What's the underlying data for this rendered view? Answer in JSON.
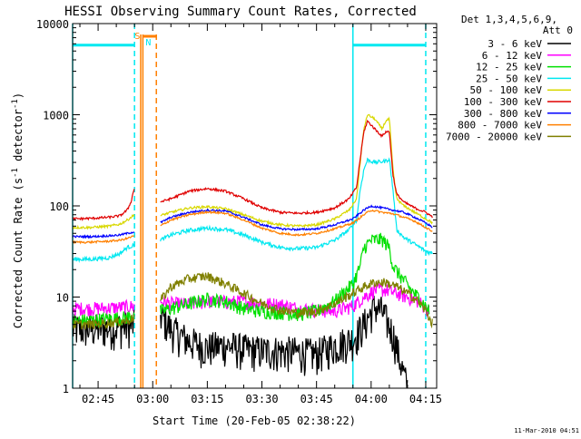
{
  "chart_data": {
    "type": "line",
    "title": "HESSI Observing Summary Count Rates, Corrected",
    "xlabel": "Start Time (20-Feb-05 02:38:22)",
    "ylabel": "Corrected Count Rate (s",
    "ylabel_sup1": "-1",
    "ylabel_mid": " detector",
    "ylabel_sup2": "-1",
    "ylabel_end": ")",
    "y_scale": "log",
    "ylim": [
      1,
      10000
    ],
    "xlim_minutes_after_0238": [
      0,
      100
    ],
    "x_ticks": [
      {
        "label": "02:45",
        "minute": 7
      },
      {
        "label": "03:00",
        "minute": 22
      },
      {
        "label": "03:15",
        "minute": 37
      },
      {
        "label": "03:30",
        "minute": 52
      },
      {
        "label": "03:45",
        "minute": 67
      },
      {
        "label": "04:00",
        "minute": 82
      },
      {
        "label": "04:15",
        "minute": 97
      }
    ],
    "y_ticks": [
      {
        "label": "1",
        "value": 1
      },
      {
        "label": "10",
        "value": 10
      },
      {
        "label": "100",
        "value": 100
      },
      {
        "label": "1000",
        "value": 1000
      },
      {
        "label": "10000",
        "value": 10000
      }
    ],
    "legend_header": [
      "Det 1,3,4,5,6,9,",
      "Att 0"
    ],
    "legend_position": "right",
    "annotations": {
      "saa_label": "S",
      "night_label": "N",
      "timestamp": "11-Mar-2010 04:51"
    },
    "series": [
      {
        "name": "3 - 6 keV",
        "color": "#000000",
        "points": [
          [
            0,
            4.5
          ],
          [
            5,
            4.5
          ],
          [
            10,
            4.6
          ],
          [
            15,
            4.8
          ],
          [
            17,
            5
          ],
          [
            21,
            null
          ],
          [
            24,
            6.5
          ],
          [
            27,
            4.5
          ],
          [
            32,
            3.3
          ],
          [
            37,
            2.8
          ],
          [
            42,
            3
          ],
          [
            47,
            2.7
          ],
          [
            52,
            2.6
          ],
          [
            57,
            2.6
          ],
          [
            62,
            2.5
          ],
          [
            67,
            2.4
          ],
          [
            72,
            3
          ],
          [
            77,
            3.5
          ],
          [
            80,
            5
          ],
          [
            83,
            8
          ],
          [
            85,
            7
          ],
          [
            88,
            4
          ],
          [
            90,
            2
          ],
          [
            92,
            1
          ]
        ]
      },
      {
        "name": "6 - 12 keV",
        "color": "#ff00ff",
        "points": [
          [
            0,
            7.5
          ],
          [
            5,
            7.5
          ],
          [
            10,
            7.6
          ],
          [
            15,
            7.8
          ],
          [
            17,
            8
          ],
          [
            21,
            null
          ],
          [
            24,
            9
          ],
          [
            27,
            8.5
          ],
          [
            32,
            8.3
          ],
          [
            37,
            9
          ],
          [
            42,
            8.8
          ],
          [
            47,
            9
          ],
          [
            52,
            8.5
          ],
          [
            57,
            8.3
          ],
          [
            62,
            7.5
          ],
          [
            67,
            7.2
          ],
          [
            72,
            7
          ],
          [
            77,
            8
          ],
          [
            80,
            10
          ],
          [
            83,
            12
          ],
          [
            86,
            12
          ],
          [
            89,
            11
          ],
          [
            92,
            10
          ],
          [
            95,
            9
          ],
          [
            98,
            7
          ]
        ]
      },
      {
        "name": "12 - 25 keV",
        "color": "#00e000",
        "points": [
          [
            0,
            5.5
          ],
          [
            5,
            5.6
          ],
          [
            10,
            5.8
          ],
          [
            15,
            6
          ],
          [
            17,
            6.5
          ],
          [
            21,
            null
          ],
          [
            24,
            7
          ],
          [
            27,
            7.5
          ],
          [
            32,
            8.5
          ],
          [
            37,
            9.5
          ],
          [
            42,
            9
          ],
          [
            47,
            7.5
          ],
          [
            52,
            7
          ],
          [
            57,
            6.8
          ],
          [
            62,
            6.5
          ],
          [
            67,
            7
          ],
          [
            72,
            9
          ],
          [
            77,
            14
          ],
          [
            79,
            22
          ],
          [
            80,
            35
          ],
          [
            82,
            42
          ],
          [
            85,
            43
          ],
          [
            87,
            35
          ],
          [
            88,
            22
          ],
          [
            90,
            17
          ],
          [
            93,
            12
          ],
          [
            96,
            9
          ],
          [
            98,
            7
          ]
        ]
      },
      {
        "name": "25 - 50 keV",
        "color": "#00e8f0",
        "points": [
          [
            0,
            26
          ],
          [
            5,
            26
          ],
          [
            10,
            27
          ],
          [
            13,
            30
          ],
          [
            15,
            35
          ],
          [
            17,
            37
          ],
          [
            21,
            null
          ],
          [
            24,
            42
          ],
          [
            27,
            48
          ],
          [
            32,
            54
          ],
          [
            37,
            57
          ],
          [
            42,
            55
          ],
          [
            47,
            48
          ],
          [
            52,
            40
          ],
          [
            57,
            35
          ],
          [
            62,
            34
          ],
          [
            67,
            35
          ],
          [
            72,
            42
          ],
          [
            76,
            55
          ],
          [
            78,
            70
          ],
          [
            79,
            150
          ],
          [
            80,
            250
          ],
          [
            81,
            320
          ],
          [
            83,
            300
          ],
          [
            86,
            310
          ],
          [
            87,
            330
          ],
          [
            88,
            150
          ],
          [
            89,
            55
          ],
          [
            91,
            45
          ],
          [
            94,
            38
          ],
          [
            97,
            32
          ],
          [
            99,
            30
          ]
        ]
      },
      {
        "name": "50 - 100 keV",
        "color": "#d8d800",
        "points": [
          [
            0,
            58
          ],
          [
            5,
            58
          ],
          [
            10,
            60
          ],
          [
            13,
            63
          ],
          [
            15,
            70
          ],
          [
            17,
            80
          ],
          [
            21,
            null
          ],
          [
            24,
            78
          ],
          [
            27,
            85
          ],
          [
            32,
            95
          ],
          [
            37,
            98
          ],
          [
            42,
            93
          ],
          [
            47,
            80
          ],
          [
            52,
            68
          ],
          [
            57,
            62
          ],
          [
            62,
            60
          ],
          [
            67,
            62
          ],
          [
            72,
            72
          ],
          [
            76,
            90
          ],
          [
            78,
            120
          ],
          [
            79,
            300
          ],
          [
            80,
            700
          ],
          [
            81,
            1000
          ],
          [
            83,
            900
          ],
          [
            85,
            700
          ],
          [
            86,
            850
          ],
          [
            87,
            900
          ],
          [
            88,
            250
          ],
          [
            89,
            120
          ],
          [
            91,
            100
          ],
          [
            94,
            85
          ],
          [
            97,
            72
          ],
          [
            99,
            65
          ]
        ]
      },
      {
        "name": "100 - 300 keV",
        "color": "#e00000",
        "points": [
          [
            0,
            72
          ],
          [
            5,
            73
          ],
          [
            10,
            75
          ],
          [
            13,
            78
          ],
          [
            15,
            90
          ],
          [
            16,
            110
          ],
          [
            17,
            160
          ],
          [
            21,
            null
          ],
          [
            24,
            110
          ],
          [
            27,
            120
          ],
          [
            32,
            145
          ],
          [
            37,
            155
          ],
          [
            42,
            145
          ],
          [
            47,
            120
          ],
          [
            52,
            95
          ],
          [
            57,
            85
          ],
          [
            62,
            83
          ],
          [
            67,
            85
          ],
          [
            72,
            95
          ],
          [
            76,
            120
          ],
          [
            78,
            160
          ],
          [
            79,
            330
          ],
          [
            80,
            650
          ],
          [
            81,
            850
          ],
          [
            83,
            700
          ],
          [
            85,
            580
          ],
          [
            86,
            650
          ],
          [
            87,
            650
          ],
          [
            88,
            220
          ],
          [
            89,
            135
          ],
          [
            91,
            110
          ],
          [
            94,
            95
          ],
          [
            97,
            85
          ],
          [
            99,
            75
          ]
        ]
      },
      {
        "name": "300 - 800 keV",
        "color": "#0000ff",
        "points": [
          [
            0,
            46
          ],
          [
            5,
            46
          ],
          [
            10,
            47
          ],
          [
            13,
            48
          ],
          [
            15,
            50
          ],
          [
            17,
            52
          ],
          [
            21,
            null
          ],
          [
            24,
            65
          ],
          [
            27,
            75
          ],
          [
            32,
            85
          ],
          [
            37,
            90
          ],
          [
            42,
            88
          ],
          [
            47,
            75
          ],
          [
            52,
            62
          ],
          [
            57,
            56
          ],
          [
            62,
            55
          ],
          [
            67,
            56
          ],
          [
            72,
            62
          ],
          [
            77,
            72
          ],
          [
            80,
            90
          ],
          [
            82,
            100
          ],
          [
            85,
            95
          ],
          [
            88,
            90
          ],
          [
            91,
            85
          ],
          [
            94,
            75
          ],
          [
            97,
            65
          ],
          [
            99,
            58
          ]
        ]
      },
      {
        "name": "800 - 7000 keV",
        "color": "#ff8000",
        "points": [
          [
            0,
            40
          ],
          [
            5,
            40
          ],
          [
            10,
            41
          ],
          [
            13,
            42
          ],
          [
            15,
            44
          ],
          [
            17,
            47
          ],
          [
            21,
            null
          ],
          [
            24,
            60
          ],
          [
            27,
            70
          ],
          [
            32,
            80
          ],
          [
            37,
            86
          ],
          [
            42,
            83
          ],
          [
            47,
            70
          ],
          [
            52,
            57
          ],
          [
            57,
            50
          ],
          [
            62,
            48
          ],
          [
            67,
            50
          ],
          [
            72,
            56
          ],
          [
            77,
            65
          ],
          [
            80,
            80
          ],
          [
            82,
            90
          ],
          [
            85,
            85
          ],
          [
            88,
            82
          ],
          [
            91,
            75
          ],
          [
            94,
            68
          ],
          [
            97,
            58
          ],
          [
            99,
            52
          ]
        ]
      },
      {
        "name": "7000 - 20000 keV",
        "color": "#808000",
        "points": [
          [
            0,
            5
          ],
          [
            5,
            5
          ],
          [
            10,
            5.2
          ],
          [
            15,
            5.5
          ],
          [
            17,
            6
          ],
          [
            21,
            null
          ],
          [
            24,
            9
          ],
          [
            27,
            13
          ],
          [
            32,
            16
          ],
          [
            37,
            17
          ],
          [
            42,
            14
          ],
          [
            47,
            11
          ],
          [
            52,
            8.5
          ],
          [
            57,
            7.2
          ],
          [
            62,
            6.7
          ],
          [
            67,
            7
          ],
          [
            72,
            8.5
          ],
          [
            77,
            11
          ],
          [
            80,
            13
          ],
          [
            83,
            14.5
          ],
          [
            86,
            14.5
          ],
          [
            89,
            13
          ],
          [
            92,
            11
          ],
          [
            95,
            9
          ],
          [
            97,
            7
          ],
          [
            99,
            5
          ]
        ]
      }
    ],
    "markers": {
      "night_segments": [
        [
          0,
          17
        ],
        [
          77,
          97
        ]
      ],
      "night_level": 5800,
      "cyan_dashed_lines": [
        17,
        97
      ],
      "cyan_solid_lines": [
        0,
        77
      ],
      "orange_solid_lines": [
        18.7,
        19.3
      ],
      "orange_dashed_line": 23,
      "saa_bar": [
        19.3,
        23
      ]
    }
  }
}
